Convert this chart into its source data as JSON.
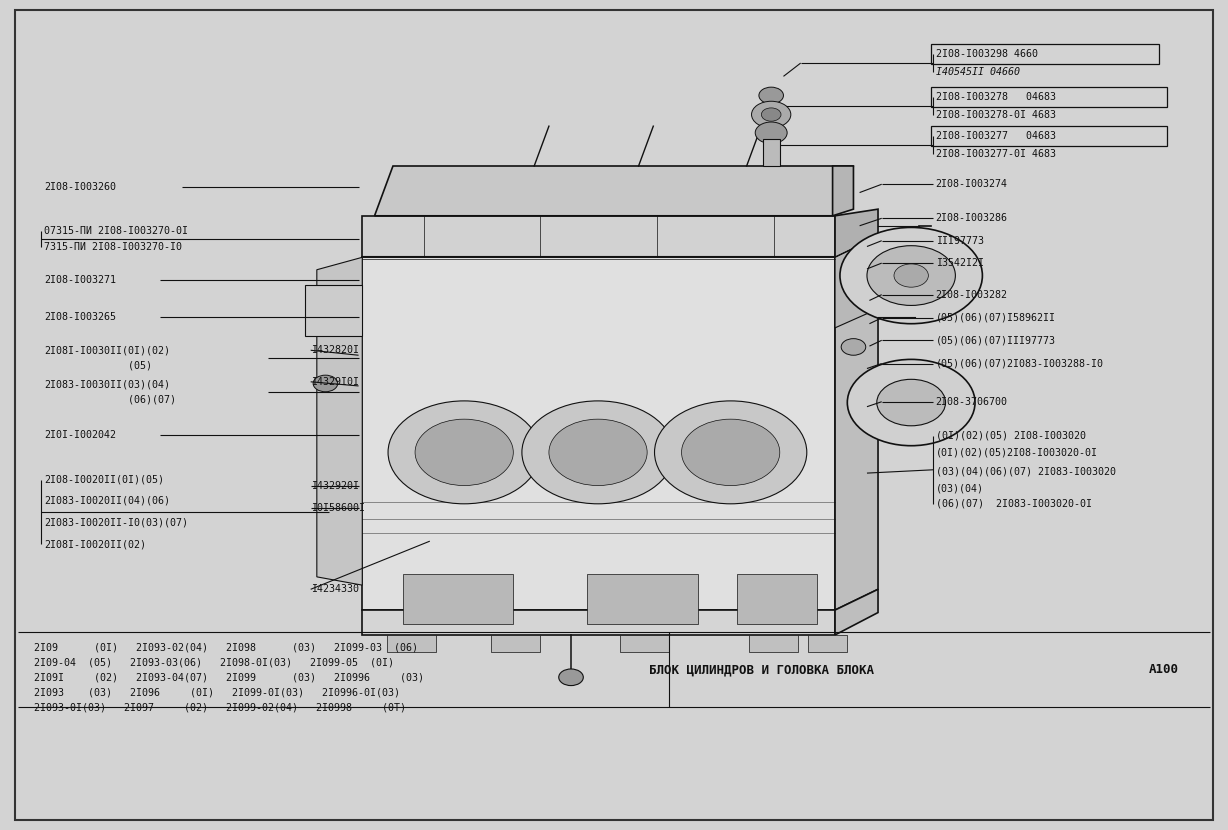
{
  "bg_color": "#d3d3d3",
  "line_color": "#111111",
  "title": "БЛОК ЦИЛИНДРОВ И ГОЛОВКА БЛОКА",
  "page": "А100",
  "font_size": 7.2,
  "font_size_title": 9.0,
  "parts_table": [
    "2I09      (0I)   2I093-02(04)   2I098      (03)   2I099-03  (06)",
    "2I09-04  (05)   2I093-03(06)   2I098-0I(03)   2I099-05  (0I)",
    "2I09I     (02)   2I093-04(07)   2I099      (03)   2I0996     (03)",
    "2I093    (03)   2I096     (0I)   2I099-0I(03)   2I0996-0I(03)",
    "2I093-0I(03)   2I097     (02)   2I099-02(04)   2I0998     (0T)"
  ]
}
